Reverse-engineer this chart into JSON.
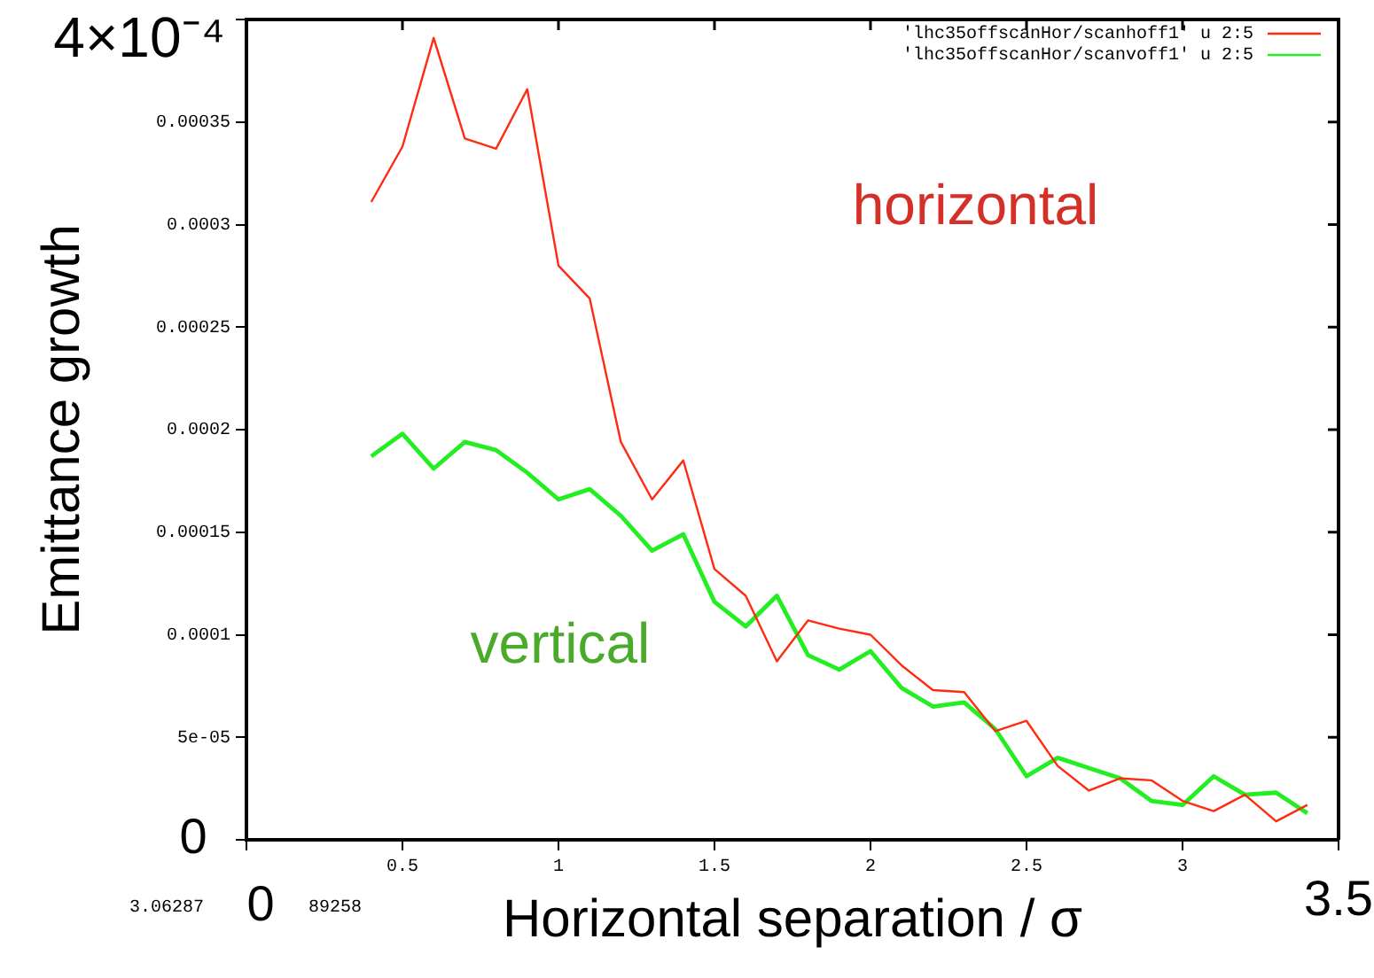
{
  "chart_data": {
    "type": "line",
    "xlabel": "Horizontal separation / σ",
    "ylabel": "Emittance growth",
    "x": [
      0.4,
      0.5,
      0.6,
      0.7,
      0.8,
      0.9,
      1.0,
      1.1,
      1.2,
      1.3,
      1.4,
      1.5,
      1.6,
      1.7,
      1.8,
      1.9,
      2.0,
      2.1,
      2.2,
      2.3,
      2.4,
      2.5,
      2.6,
      2.7,
      2.8,
      2.9,
      3.0,
      3.1,
      3.2,
      3.3,
      3.4
    ],
    "series": [
      {
        "name": "'lhc35offscanHor/scanhoff1' u 2:5",
        "color": "#ff2a10",
        "values": [
          0.000311,
          0.000338,
          0.000391,
          0.000342,
          0.000337,
          0.000366,
          0.00028,
          0.000264,
          0.000194,
          0.000166,
          0.000185,
          0.000132,
          0.000119,
          8.7e-05,
          0.000107,
          0.000103,
          0.0001,
          8.5e-05,
          7.3e-05,
          7.2e-05,
          5.3e-05,
          5.8e-05,
          3.6e-05,
          2.4e-05,
          3e-05,
          2.9e-05,
          1.9e-05,
          1.4e-05,
          2.2e-05,
          9e-06,
          1.7e-05
        ]
      },
      {
        "name": "'lhc35offscanHor/scanvoff1' u 2:5",
        "color": "#22ee22",
        "values": [
          0.000187,
          0.000198,
          0.000181,
          0.000194,
          0.00019,
          0.000179,
          0.000166,
          0.000171,
          0.000158,
          0.000141,
          0.000149,
          0.000116,
          0.000104,
          0.000119,
          9e-05,
          8.3e-05,
          9.2e-05,
          7.4e-05,
          6.5e-05,
          6.7e-05,
          5.4e-05,
          3.1e-05,
          4e-05,
          3.5e-05,
          3e-05,
          1.9e-05,
          1.7e-05,
          3.1e-05,
          2.2e-05,
          2.3e-05,
          1.3e-05
        ]
      }
    ],
    "xlim": [
      0,
      3.5
    ],
    "xticks": [
      {
        "value": 0,
        "label": null
      },
      0.5,
      1,
      1.5,
      2,
      2.5,
      3,
      {
        "value": 3.5,
        "label": null
      }
    ],
    "ylim": [
      0,
      0.0004
    ],
    "yticks": [
      {
        "value": 0,
        "label": null
      },
      {
        "value": 5e-05,
        "label": "5e-05"
      },
      {
        "value": 0.0001,
        "label": "0.0001"
      },
      {
        "value": 0.00015,
        "label": "0.00015"
      },
      {
        "value": 0.0002,
        "label": "0.0002"
      },
      {
        "value": 0.00025,
        "label": "0.00025"
      },
      {
        "value": 0.0003,
        "label": "0.0003"
      },
      {
        "value": 0.00035,
        "label": "0.00035"
      },
      {
        "value": 0.0004,
        "label": null
      }
    ],
    "annotations": [
      "horizontal",
      "vertical",
      "4×10⁻⁴",
      "0",
      "0",
      "3.5",
      "3.06287",
      "89258"
    ],
    "legend": "top right",
    "grid": false,
    "marker": "none",
    "line_style": "solid"
  }
}
